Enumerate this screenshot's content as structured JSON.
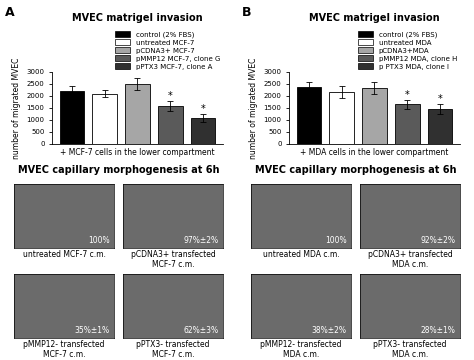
{
  "chart_data": [
    {
      "type": "bar",
      "panel": "A",
      "title": "MVEC matrigel invasion",
      "y_label": "number of migrated MVEC",
      "x_label": "+ MCF-7 cells in the lower compartment",
      "categories": [
        "control (2% FBS)",
        "untreated MCF-7",
        "pCDNA3+ MCF-7",
        "pMMP12 MCF-7, clone G",
        "pPTX3 MCF-7, clone A"
      ],
      "values": [
        2200,
        2100,
        2500,
        1580,
        1080
      ],
      "errors": [
        200,
        150,
        250,
        200,
        150
      ],
      "colors": [
        "#000000",
        "#ffffff",
        "#a6a6a6",
        "#5a5a5a",
        "#303030"
      ],
      "ylim": [
        0,
        3000
      ],
      "yticks": [
        0,
        500,
        1000,
        1500,
        2000,
        2500,
        3000
      ],
      "legend": "upper right",
      "tick_labels": "y",
      "annotations": [
        {
          "category": "pMMP12 MCF-7, clone G",
          "text": "*"
        },
        {
          "category": "pPTX3 MCF-7, clone A",
          "text": "*"
        }
      ]
    },
    {
      "type": "bar",
      "panel": "B",
      "title": "MVEC matrigel invasion",
      "y_label": "number of migrated MVEC",
      "x_label": "+ MDA cells in the lower compartment",
      "categories": [
        "control (2% FBS)",
        "untreated MDA",
        "pCDNA3+MDA",
        "pMMP12 MDA, clone H",
        "p PTX3 MDA, clone I"
      ],
      "values": [
        2380,
        2150,
        2350,
        1650,
        1450
      ],
      "errors": [
        200,
        250,
        250,
        200,
        200
      ],
      "colors": [
        "#000000",
        "#ffffff",
        "#a6a6a6",
        "#5a5a5a",
        "#303030"
      ],
      "ylim": [
        0,
        3000
      ],
      "yticks": [
        0,
        500,
        1000,
        1500,
        2000,
        2500,
        3000
      ],
      "legend": "upper right",
      "tick_labels": "y",
      "annotations": [
        {
          "category": "pMMP12 MDA, clone H",
          "text": "*"
        },
        {
          "category": "p PTX3 MDA, clone I",
          "text": "*"
        }
      ]
    }
  ],
  "image_panels": [
    {
      "title": "MVEC capillary morphogenesis at 6h",
      "images": [
        {
          "label": "untreated MCF-7 c.m.",
          "value_text": "100%"
        },
        {
          "label": "pCDNA3+ transfected\nMCF-7 c.m.",
          "value_text": "97%±2%"
        },
        {
          "label": "pMMP12- transfected\nMCF-7 c.m.",
          "value_text": "35%±1%"
        },
        {
          "label": "pPTX3- transfected\nMCF-7 c.m.",
          "value_text": "62%±3%"
        }
      ]
    },
    {
      "title": "MVEC capillary morphogenesis at 6h",
      "images": [
        {
          "label": "untreated MDA c.m.",
          "value_text": "100%"
        },
        {
          "label": "pCDNA3+ transfected\nMDA c.m.",
          "value_text": "92%±2%"
        },
        {
          "label": "pMMP12- transfected\nMDA c.m.",
          "value_text": "38%±2%"
        },
        {
          "label": "pPTX3- transfected\nMDA c.m.",
          "value_text": "28%±1%"
        }
      ]
    }
  ]
}
